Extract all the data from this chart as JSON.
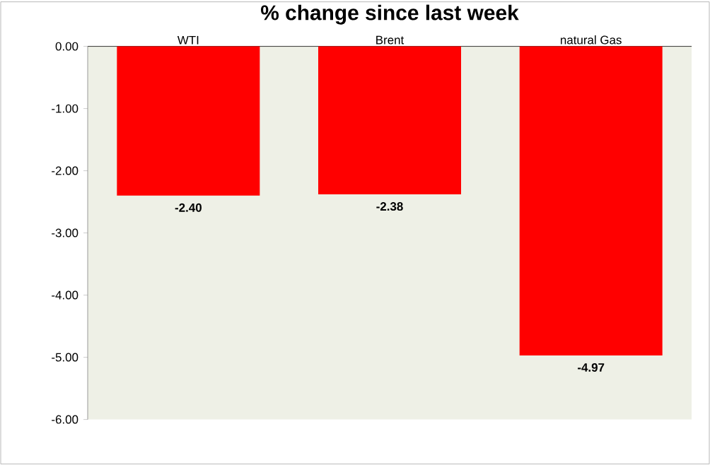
{
  "chart_data": {
    "type": "bar",
    "title": "% change since last week",
    "categories": [
      "WTI",
      "Brent",
      "natural Gas"
    ],
    "values": [
      -2.4,
      -2.38,
      -4.97
    ],
    "value_labels": [
      "-2.40",
      "-2.38",
      "-4.97"
    ],
    "color": "#ff0000",
    "ylim": [
      -6,
      0
    ],
    "yticks": [
      {
        "value": 0,
        "label": "0.00"
      },
      {
        "value": -1,
        "label": "-1.00"
      },
      {
        "value": -2,
        "label": "-2.00"
      },
      {
        "value": -3,
        "label": "-3.00"
      },
      {
        "value": -4,
        "label": "-4.00"
      },
      {
        "value": -5,
        "label": "-5.00"
      },
      {
        "value": -6,
        "label": "-6.00"
      }
    ]
  }
}
